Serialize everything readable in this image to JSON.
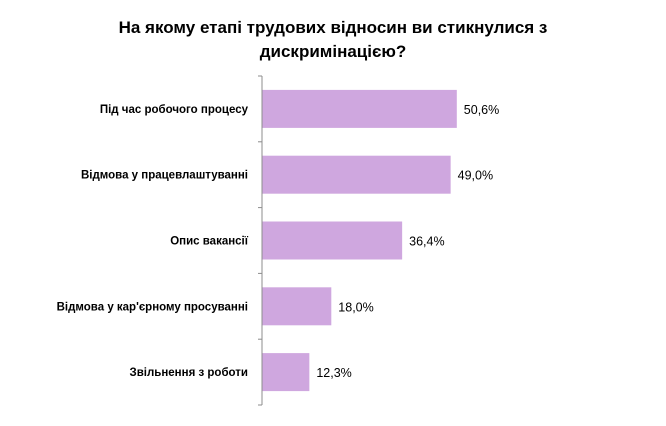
{
  "chart_data": {
    "type": "bar",
    "orientation": "horizontal",
    "title_lines": [
      "На якому етапі трудових відносин ви стикнулися з",
      "дискримінацією?"
    ],
    "categories": [
      "Під час робочого процесу",
      "Відмова у працевлаштуванні",
      "Опис вакансії",
      "Відмова у кар'єрному  просуванні",
      "Звільнення  з роботи"
    ],
    "values": [
      50.6,
      49.0,
      36.4,
      18.0,
      12.3
    ],
    "value_labels": [
      "50,6%",
      "49,0%",
      "36,4%",
      "18,0%",
      "12,3%"
    ],
    "unit": "%",
    "xlim": [
      0,
      100
    ],
    "grid": false,
    "legend": "none",
    "colors": {
      "bar": "#cfa7df",
      "axis": "#8c8c8c",
      "text": "#000000"
    }
  }
}
